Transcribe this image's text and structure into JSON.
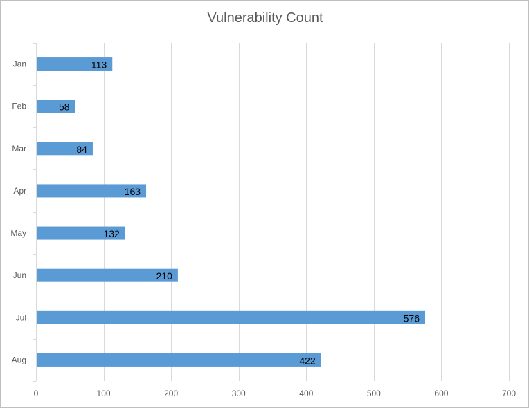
{
  "chart_data": {
    "type": "bar",
    "orientation": "horizontal",
    "title": "Vulnerability Count",
    "xlabel": "",
    "ylabel": "",
    "categories": [
      "Jan",
      "Feb",
      "Mar",
      "Apr",
      "May",
      "Jun",
      "Jul",
      "Aug"
    ],
    "values": [
      113,
      58,
      84,
      163,
      132,
      210,
      576,
      422
    ],
    "xlim": [
      0,
      700
    ],
    "xticks": [
      0,
      100,
      200,
      300,
      400,
      500,
      600,
      700
    ],
    "grid": true,
    "legend": "none",
    "bar_color": "#5b9bd5",
    "data_labels": true
  }
}
